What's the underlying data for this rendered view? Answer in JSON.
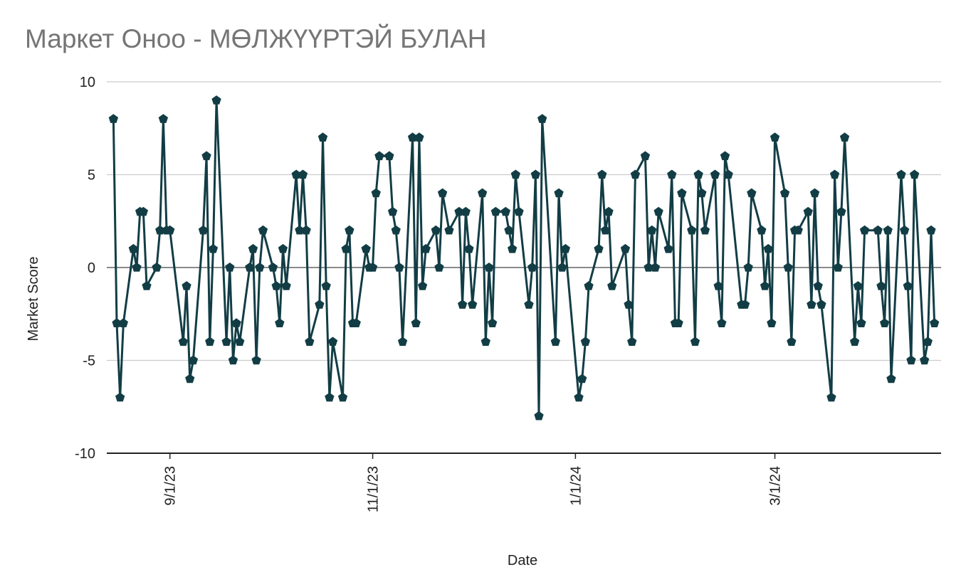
{
  "chart_data": {
    "type": "line",
    "title": "Маркет Оноо - МӨЛЖҮҮРТЭЙ БУЛАН",
    "x_label": "Date",
    "y_label": "Market Score",
    "x": [
      "8/15/23",
      "8/16/23",
      "8/17/23",
      "8/18/23",
      "8/21/23",
      "8/22/23",
      "8/23/23",
      "8/24/23",
      "8/25/23",
      "8/28/23",
      "8/29/23",
      "8/30/23",
      "8/31/23",
      "9/1/23",
      "9/5/23",
      "9/6/23",
      "9/7/23",
      "9/8/23",
      "9/11/23",
      "9/12/23",
      "9/13/23",
      "9/14/23",
      "9/15/23",
      "9/18/23",
      "9/19/23",
      "9/20/23",
      "9/21/23",
      "9/22/23",
      "9/25/23",
      "9/26/23",
      "9/27/23",
      "9/28/23",
      "9/29/23",
      "10/2/23",
      "10/3/23",
      "10/4/23",
      "10/5/23",
      "10/6/23",
      "10/9/23",
      "10/10/23",
      "10/11/23",
      "10/12/23",
      "10/13/23",
      "10/16/23",
      "10/17/23",
      "10/18/23",
      "10/19/23",
      "10/20/23",
      "10/23/23",
      "10/24/23",
      "10/25/23",
      "10/26/23",
      "10/27/23",
      "10/30/23",
      "10/31/23",
      "11/1/23",
      "11/2/23",
      "11/3/23",
      "11/6/23",
      "11/7/23",
      "11/8/23",
      "11/9/23",
      "11/10/23",
      "11/13/23",
      "11/14/23",
      "11/15/23",
      "11/16/23",
      "11/17/23",
      "11/20/23",
      "11/21/23",
      "11/22/23",
      "11/24/23",
      "11/27/23",
      "11/28/23",
      "11/29/23",
      "11/30/23",
      "12/1/23",
      "12/4/23",
      "12/5/23",
      "12/6/23",
      "12/7/23",
      "12/8/23",
      "12/11/23",
      "12/12/23",
      "12/13/23",
      "12/14/23",
      "12/15/23",
      "12/18/23",
      "12/19/23",
      "12/20/23",
      "12/21/23",
      "12/22/23",
      "12/26/23",
      "12/27/23",
      "12/28/23",
      "12/29/23",
      "1/2/24",
      "1/3/24",
      "1/4/24",
      "1/5/24",
      "1/8/24",
      "1/9/24",
      "1/10/24",
      "1/11/24",
      "1/12/24",
      "1/16/24",
      "1/17/24",
      "1/18/24",
      "1/19/24",
      "1/22/24",
      "1/23/24",
      "1/24/24",
      "1/25/24",
      "1/26/24",
      "1/29/24",
      "1/30/24",
      "1/31/24",
      "2/1/24",
      "2/2/24",
      "2/5/24",
      "2/6/24",
      "2/7/24",
      "2/8/24",
      "2/9/24",
      "2/12/24",
      "2/13/24",
      "2/14/24",
      "2/15/24",
      "2/16/24",
      "2/20/24",
      "2/21/24",
      "2/22/24",
      "2/23/24",
      "2/26/24",
      "2/27/24",
      "2/28/24",
      "2/29/24",
      "3/1/24",
      "3/4/24",
      "3/5/24",
      "3/6/24",
      "3/7/24",
      "3/8/24",
      "3/11/24",
      "3/12/24",
      "3/13/24",
      "3/14/24",
      "3/15/24",
      "3/18/24",
      "3/19/24",
      "3/20/24",
      "3/21/24",
      "3/22/24",
      "3/25/24",
      "3/26/24",
      "3/27/24",
      "3/28/24",
      "4/1/24",
      "4/2/24",
      "4/3/24",
      "4/4/24",
      "4/5/24",
      "4/8/24",
      "4/9/24",
      "4/10/24",
      "4/11/24",
      "4/12/24",
      "4/15/24",
      "4/16/24",
      "4/17/24",
      "4/18/24"
    ],
    "series": [
      {
        "name": "Market Score",
        "color": "#123d45",
        "values": [
          8,
          -3,
          -7,
          -3,
          1,
          0,
          3,
          3,
          -1,
          0,
          2,
          8,
          2,
          2,
          -4,
          -1,
          -6,
          -5,
          2,
          6,
          -4,
          1,
          9,
          -4,
          0,
          -5,
          -3,
          -4,
          0,
          1,
          -5,
          0,
          2,
          0,
          -1,
          -3,
          1,
          -1,
          5,
          2,
          5,
          2,
          -4,
          -2,
          7,
          -1,
          -7,
          -4,
          -7,
          1,
          2,
          -3,
          -3,
          1,
          0,
          0,
          4,
          6,
          6,
          3,
          2,
          0,
          -4,
          7,
          -3,
          7,
          -1,
          1,
          2,
          0,
          4,
          2,
          3,
          -2,
          3,
          1,
          -2,
          4,
          -4,
          0,
          -3,
          3,
          3,
          2,
          1,
          5,
          3,
          -2,
          0,
          5,
          -8,
          8,
          -4,
          4,
          0,
          1,
          -7,
          -6,
          -4,
          -1,
          1,
          5,
          2,
          3,
          -1,
          1,
          -2,
          -4,
          5,
          6,
          0,
          2,
          0,
          3,
          1,
          5,
          -3,
          -3,
          4,
          2,
          -4,
          5,
          4,
          2,
          5,
          -1,
          -3,
          6,
          5,
          -2,
          -2,
          0,
          4,
          2,
          -1,
          1,
          -3,
          7,
          4,
          0,
          -4,
          2,
          2,
          3,
          -2,
          4,
          -1,
          -2,
          -7,
          5,
          0,
          3,
          7,
          -4,
          -1,
          -3,
          2,
          2,
          -1,
          -3,
          2,
          -6,
          5,
          2,
          -1,
          -5,
          5,
          -5,
          -4,
          2,
          -3
        ]
      }
    ],
    "xlim": [
      "8/13/23",
      "4/20/24"
    ],
    "xticks": [
      "9/1/23",
      "11/1/23",
      "1/1/24",
      "3/1/24"
    ],
    "ylim": [
      -10,
      10
    ],
    "yticks": [
      -10,
      -5,
      0,
      5,
      10
    ],
    "grid": true
  }
}
